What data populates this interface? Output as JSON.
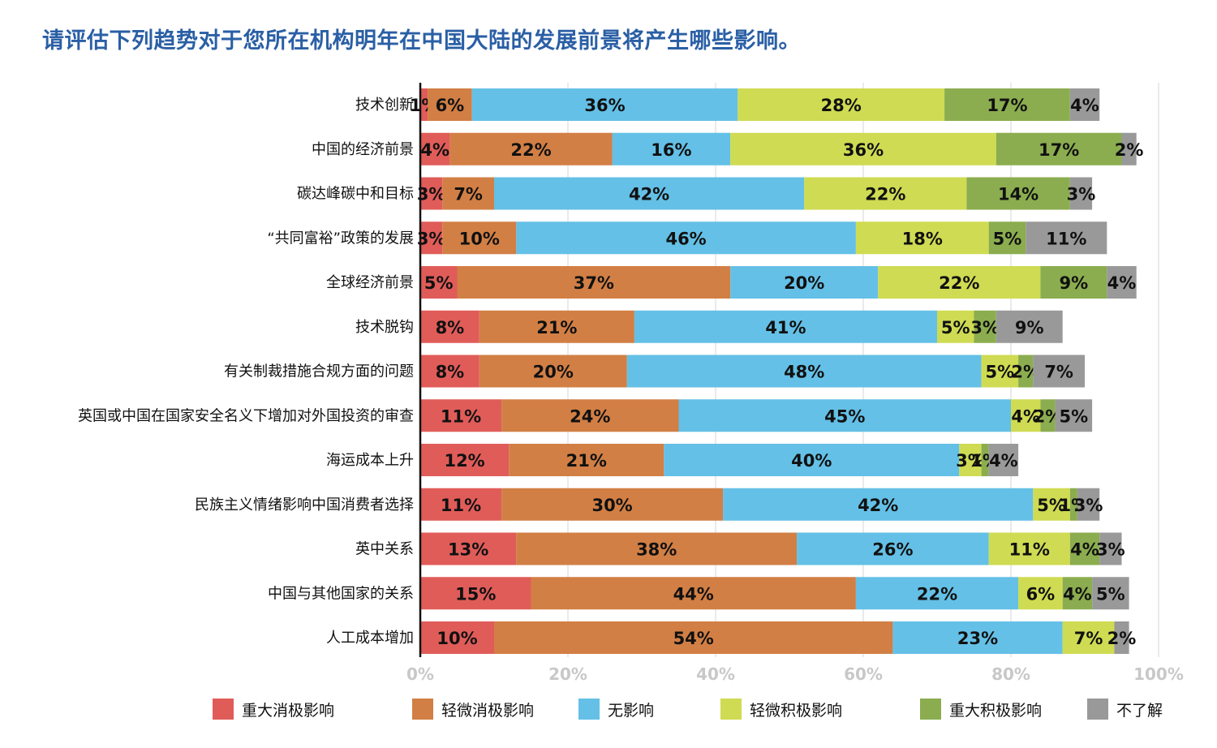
{
  "title": "请评估下列趋势对于您所在机构明年在中国大陆的发展前景将产生哪些影响。",
  "chart_data": {
    "type": "bar",
    "orientation": "horizontal",
    "stacked": true,
    "categories": [
      "技术创新",
      "中国的经济前景",
      "碳达峰碳中和目标",
      "“共同富裕”政策的发展",
      "全球经济前景",
      "技术脱钩",
      "有关制裁措施合规方面的问题",
      "英国或中国在国家安全名义下增加对外国投资的审查",
      "海运成本上升",
      "民族主义情绪影响中国消费者选择",
      "英中关系",
      "中国与其他国家的关系",
      "人工成本增加"
    ],
    "series": [
      {
        "name": "重大消极影响",
        "color": "#e05c59",
        "values": [
          1,
          4,
          3,
          3,
          5,
          8,
          8,
          11,
          12,
          11,
          13,
          15,
          10
        ]
      },
      {
        "name": "轻微消极影响",
        "color": "#d27f45",
        "values": [
          6,
          22,
          7,
          10,
          37,
          21,
          20,
          24,
          21,
          30,
          38,
          44,
          54
        ]
      },
      {
        "name": "无影响",
        "color": "#64c0e6",
        "values": [
          36,
          16,
          42,
          46,
          20,
          41,
          48,
          45,
          40,
          42,
          26,
          22,
          23
        ]
      },
      {
        "name": "轻微积极影响",
        "color": "#cfdb52",
        "values": [
          28,
          36,
          22,
          18,
          22,
          5,
          5,
          4,
          3,
          5,
          11,
          6,
          7
        ]
      },
      {
        "name": "重大积极影响",
        "color": "#8bad4f",
        "values": [
          17,
          17,
          14,
          5,
          9,
          3,
          2,
          2,
          1,
          1,
          4,
          4,
          0
        ]
      },
      {
        "name": "不了解",
        "color": "#999999",
        "values": [
          4,
          2,
          3,
          11,
          4,
          9,
          7,
          5,
          4,
          3,
          3,
          5,
          2
        ]
      }
    ],
    "xlim": [
      0,
      100
    ],
    "xticks": [
      "0%",
      "20%",
      "40%",
      "60%",
      "80%",
      "100%"
    ],
    "grid": true,
    "legend": "bottom"
  }
}
